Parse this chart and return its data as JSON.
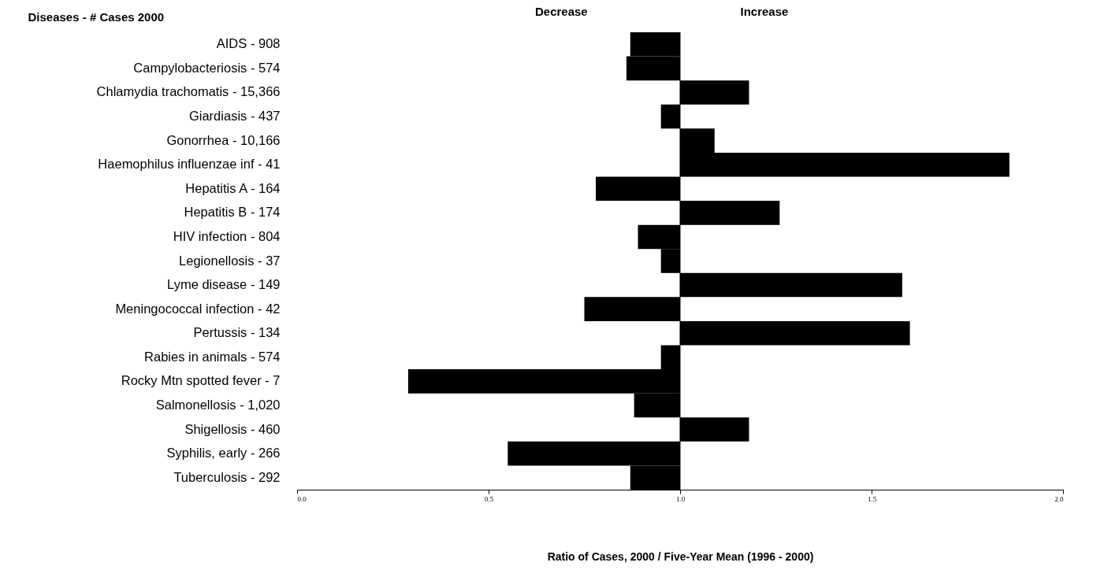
{
  "chart_data": {
    "type": "bar",
    "orientation": "horizontal",
    "ylabel": "Diseases - # Cases 2000",
    "xlabel": "Ratio of Cases, 2000 / Five-Year Mean (1996 - 2000)",
    "categories": [
      "AIDS - 908",
      "Campylobacteriosis - 574",
      "Chlamydia trachomatis - 15,366",
      "Giardiasis - 437",
      "Gonorrhea - 10,166",
      "Haemophilus influenzae  inf  - 41",
      "Hepatitis A - 164",
      "Hepatitis B - 174",
      "HIV infection - 804",
      "Legionellosis - 37",
      "Lyme disease - 149",
      "Meningococcal infection - 42",
      "Pertussis - 134",
      "Rabies in animals - 574",
      "Rocky Mtn spotted fever - 7",
      "Salmonellosis - 1,020",
      "Shigellosis - 460",
      "Syphilis, early - 266",
      "Tuberculosis - 292"
    ],
    "base": [
      1.0,
      1.0,
      1.0,
      1.0,
      1.0,
      1.0,
      1.0,
      1.0,
      1.0,
      1.0,
      1.0,
      1.0,
      1.0,
      1.0,
      1.0,
      1.0,
      1.0,
      1.0,
      1.0
    ],
    "values": [
      -0.13,
      -0.14,
      0.18,
      -0.05,
      0.09,
      0.86,
      -0.22,
      0.26,
      -0.11,
      -0.05,
      0.58,
      -0.25,
      0.6,
      -0.05,
      -0.71,
      -0.12,
      0.18,
      -0.45,
      -0.13
    ],
    "color": "#000000",
    "xlim": [
      0.0,
      2.0
    ],
    "xticks": [
      {
        "value": 0.0,
        "label": "0.0"
      },
      {
        "value": 0.5,
        "label": "0.5"
      },
      {
        "value": 1.0,
        "label": "1.0"
      },
      {
        "value": 1.5,
        "label": "1.5"
      },
      {
        "value": 2.0,
        "label": "2.0"
      }
    ],
    "ref_lines": [
      {
        "axis": "x",
        "value": 1.0
      }
    ],
    "annotations": [
      "Decrease",
      "Increase"
    ],
    "grid": false
  }
}
